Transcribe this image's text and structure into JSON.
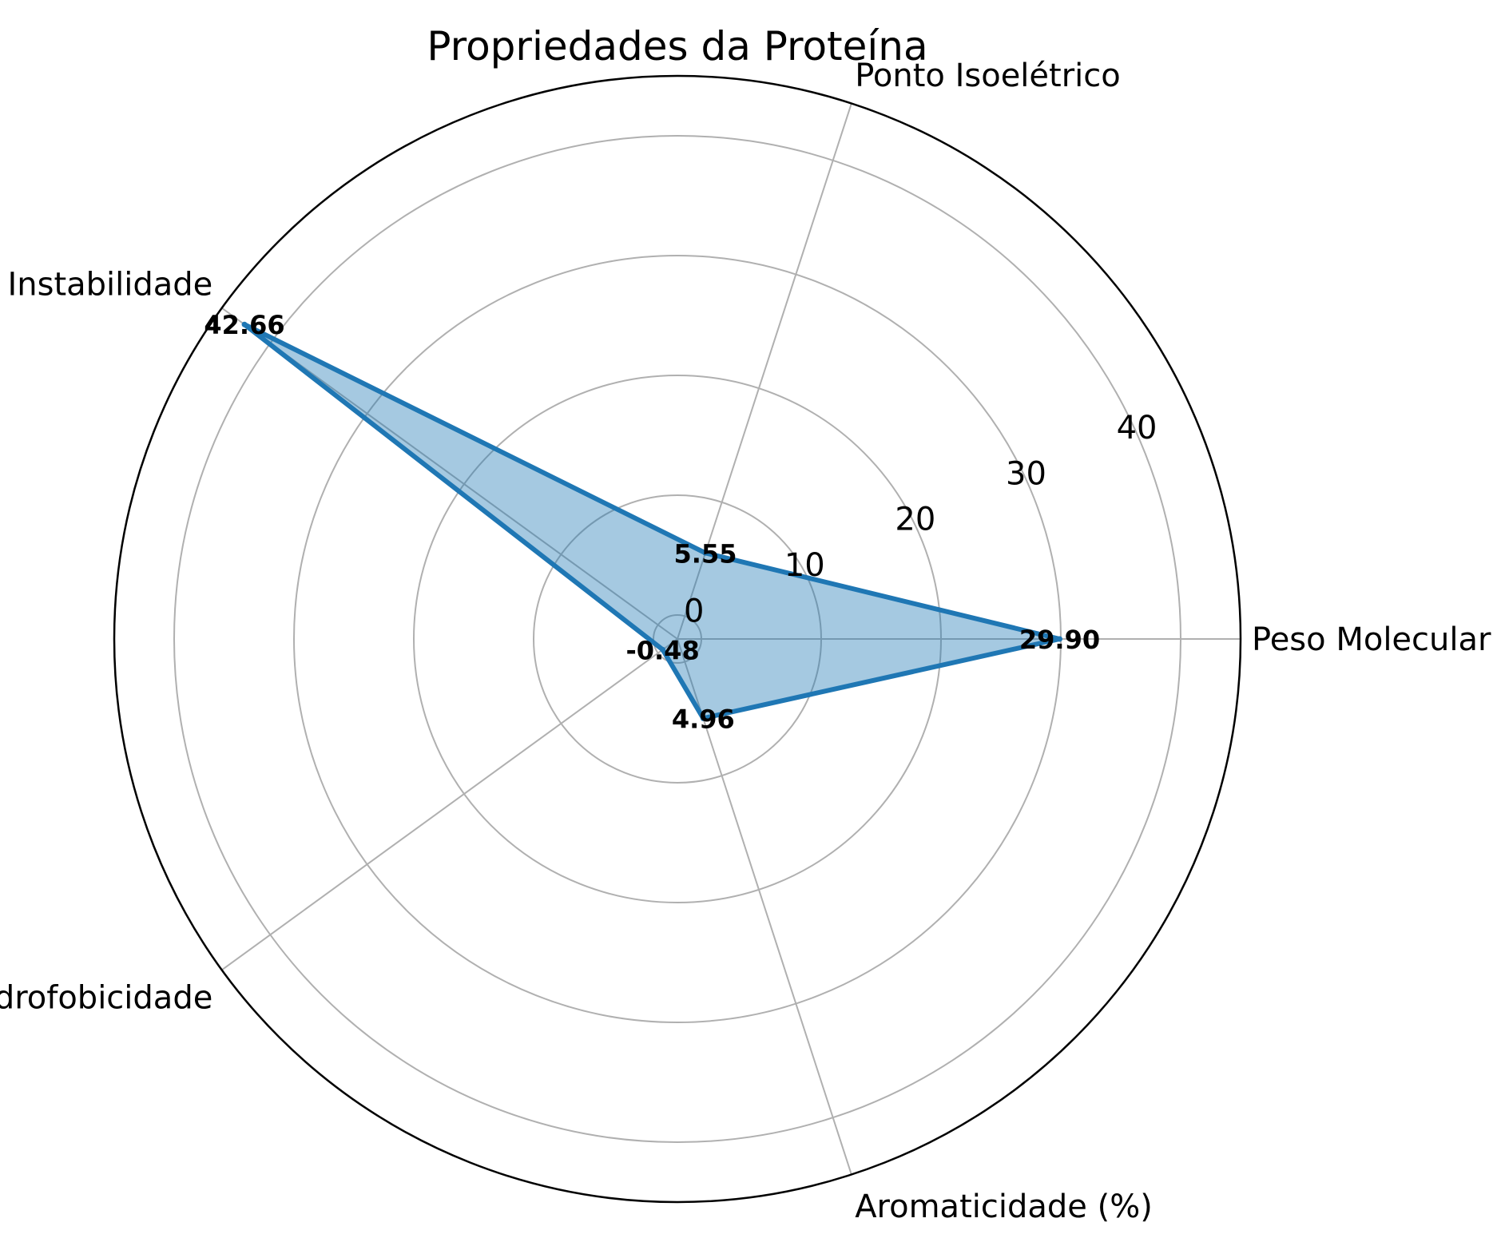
{
  "chart_data": {
    "type": "radar",
    "title": "Propriedades da Proteína",
    "categories": [
      "Peso Molecular (kDa)",
      "Ponto Isoelétrico",
      "Instabilidade",
      "Hidrofobicidade",
      "Aromaticidade (%)"
    ],
    "values": [
      29.9,
      5.55,
      42.66,
      -0.48,
      4.96
    ],
    "value_labels": [
      "29.90",
      "5.55",
      "42.66",
      "-0.48",
      "4.96"
    ],
    "rlim": [
      -2,
      45
    ],
    "r_ticks": [
      0,
      10,
      20,
      30,
      40
    ],
    "r_tick_labels": [
      "0",
      "10",
      "20",
      "30",
      "40"
    ],
    "grid": true,
    "colors": {
      "line": "#1f77b4",
      "fill": "#1f77b4",
      "grid": "#b0b0b0",
      "spine": "#000000"
    }
  }
}
